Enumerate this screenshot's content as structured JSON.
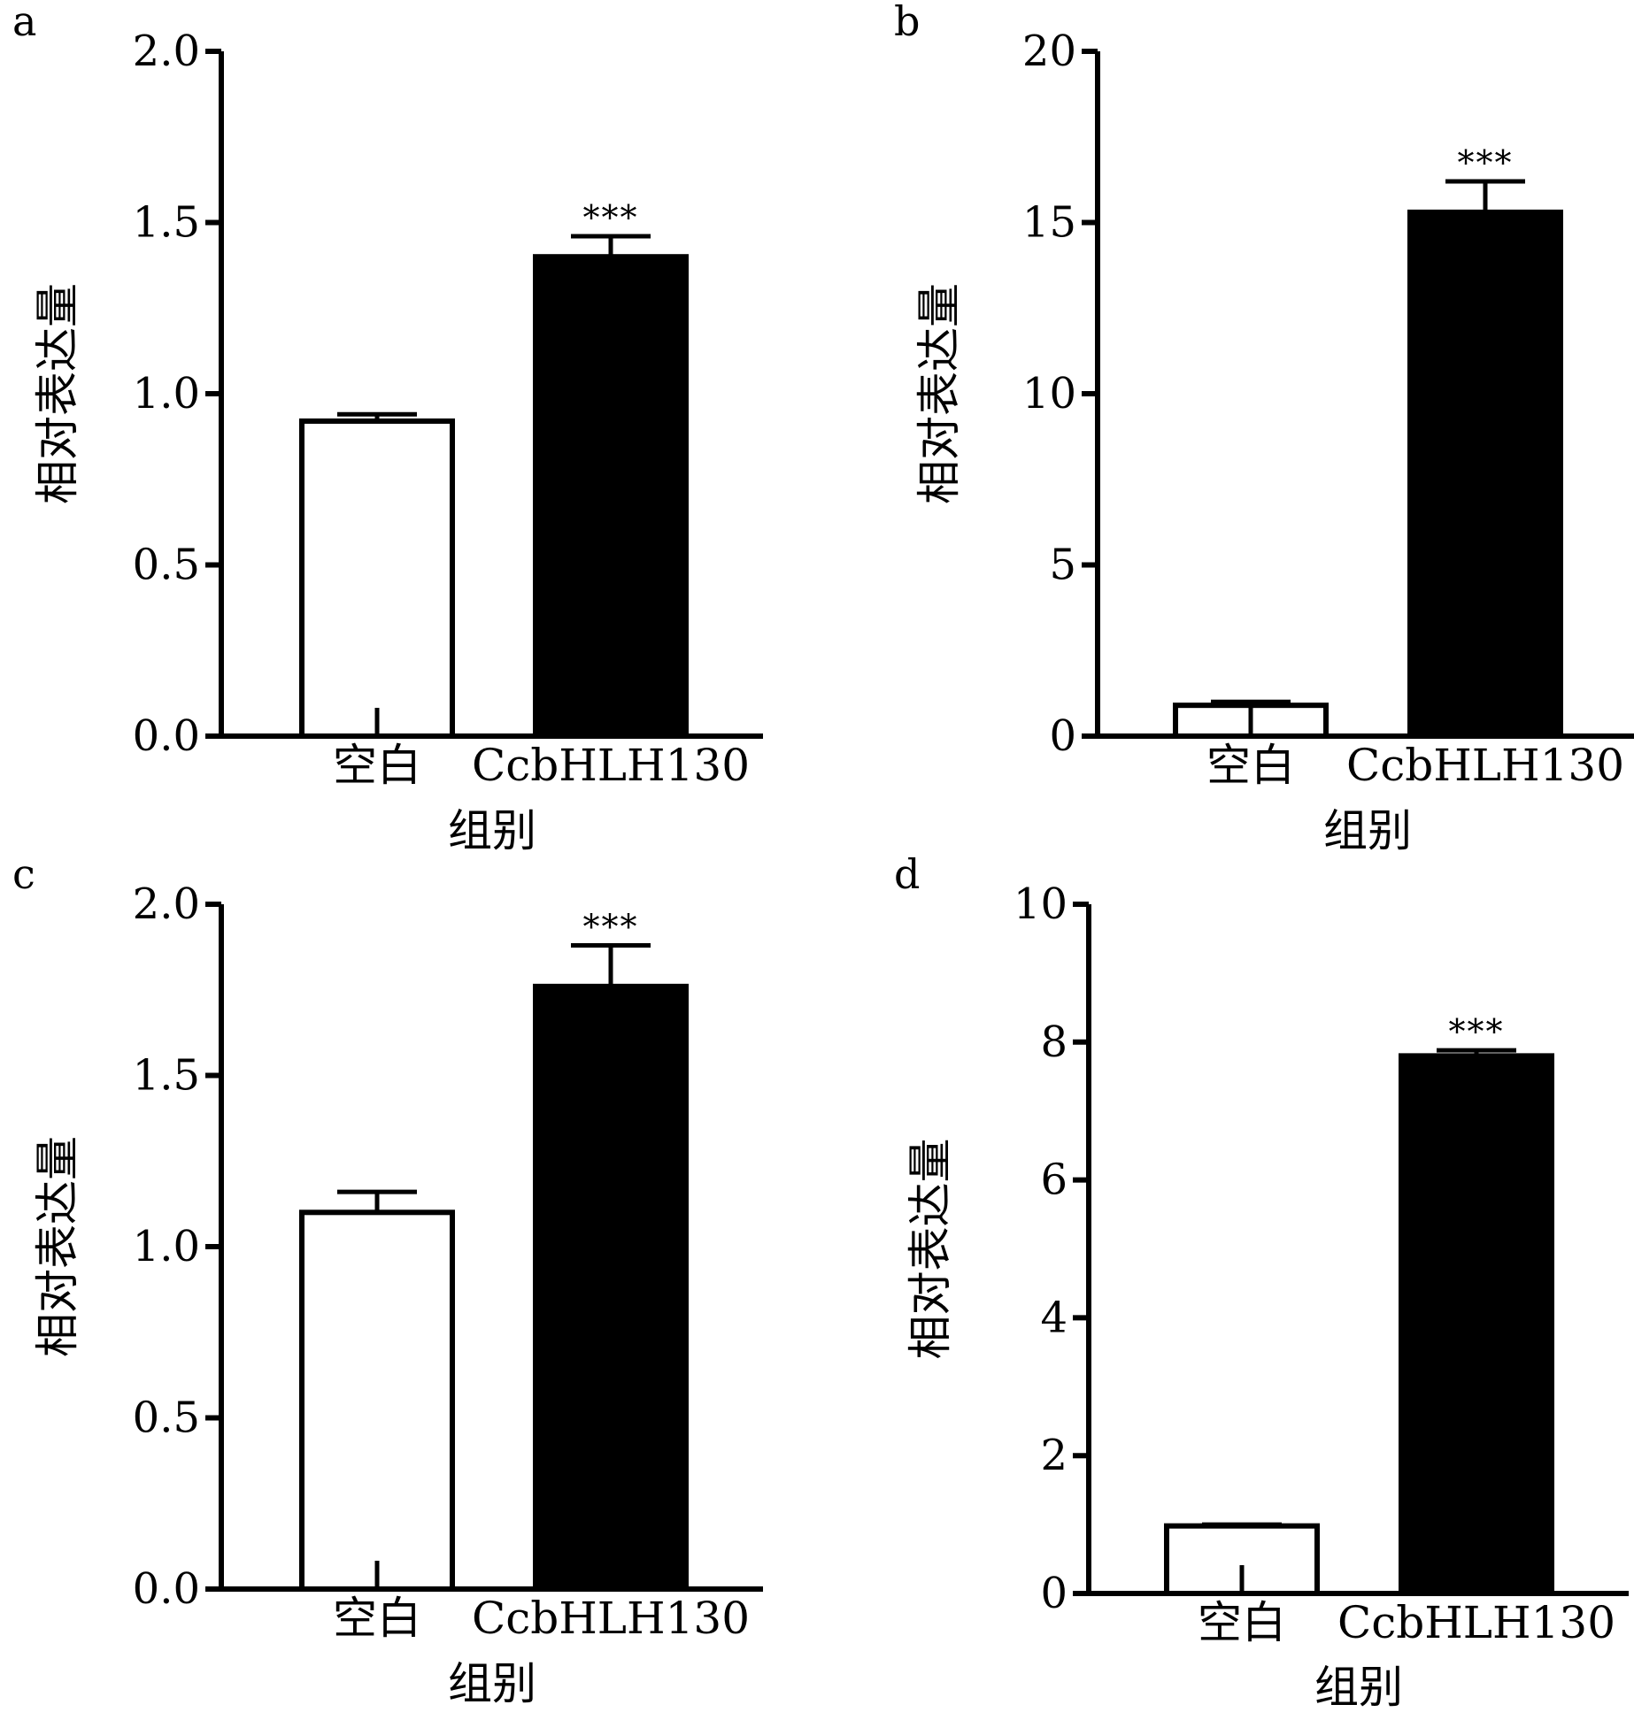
{
  "figure": {
    "colors": {
      "background": "#ffffff",
      "ink": "#000000",
      "control_fill": "#ffffff",
      "treatment_fill": "#000000"
    }
  },
  "chart_data": [
    {
      "panel": "a",
      "type": "bar",
      "xlabel": "组别",
      "ylabel": "相对表达量",
      "ylim": [
        0,
        2.0
      ],
      "yticks": [
        "0.0",
        "0.5",
        "1.0",
        "1.5",
        "2.0"
      ],
      "categories": [
        "空白",
        "CcbHLH130"
      ],
      "values": [
        0.92,
        1.4
      ],
      "errors": [
        0.02,
        0.06
      ],
      "significance": [
        "",
        "***"
      ]
    },
    {
      "panel": "b",
      "type": "bar",
      "xlabel": "组别",
      "ylabel": "相对表达量",
      "ylim": [
        0,
        20
      ],
      "yticks": [
        "0",
        "5",
        "10",
        "15",
        "20"
      ],
      "categories": [
        "空白",
        "CcbHLH130"
      ],
      "values": [
        0.9,
        15.3
      ],
      "errors": [
        0.1,
        0.9
      ],
      "significance": [
        "",
        "***"
      ]
    },
    {
      "panel": "c",
      "type": "bar",
      "xlabel": "组别",
      "ylabel": "相对表达量",
      "ylim": [
        0,
        2.0
      ],
      "yticks": [
        "0.0",
        "0.5",
        "1.0",
        "1.5",
        "2.0"
      ],
      "categories": [
        "空白",
        "CcbHLH130"
      ],
      "values": [
        1.1,
        1.76
      ],
      "errors": [
        0.06,
        0.12
      ],
      "significance": [
        "",
        "***"
      ]
    },
    {
      "panel": "d",
      "type": "bar",
      "xlabel": "组别",
      "ylabel": "相对表达量",
      "ylim": [
        0,
        10
      ],
      "yticks": [
        "0",
        "2",
        "4",
        "6",
        "8",
        "10"
      ],
      "categories": [
        "空白",
        "CcbHLH130"
      ],
      "values": [
        0.98,
        7.8
      ],
      "errors": [
        0.02,
        0.08
      ],
      "significance": [
        "",
        "***"
      ]
    }
  ]
}
